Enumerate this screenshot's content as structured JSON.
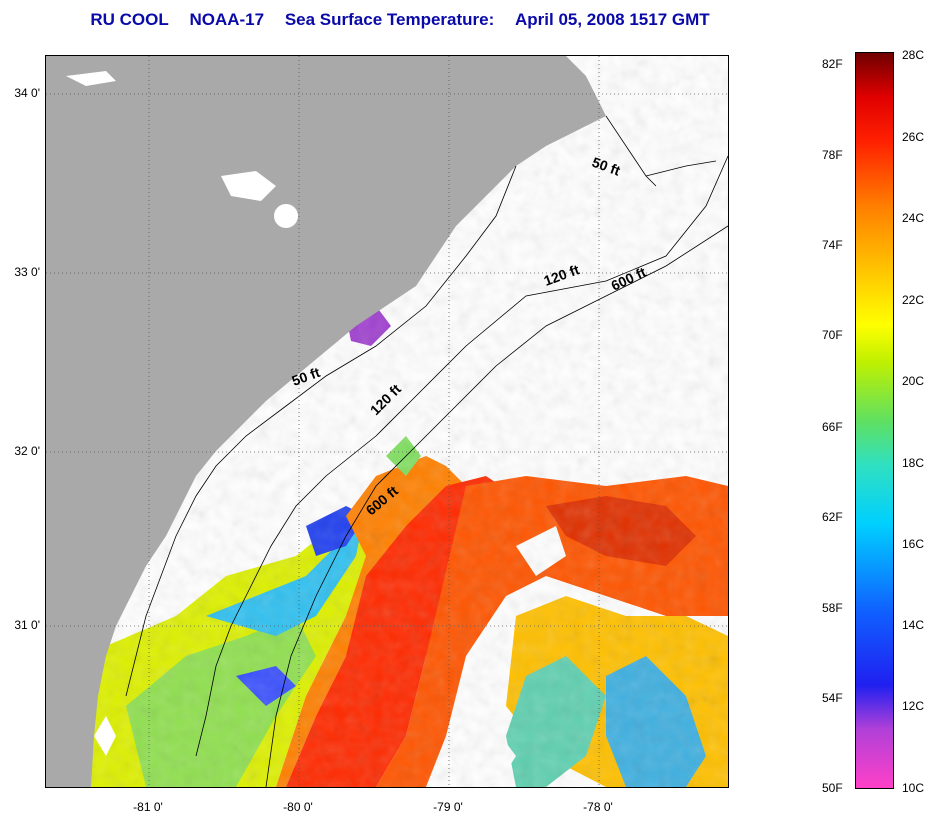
{
  "title": {
    "org": "RU COOL",
    "satellite": "NOAA-17",
    "product": "Sea Surface Temperature:",
    "datetime": "April 05, 2008 1517 GMT"
  },
  "map": {
    "latitude_labels": [
      "34 0'",
      "33 0'",
      "32 0'",
      "31 0'"
    ],
    "longitude_labels": [
      "-81 0'",
      "-80 0'",
      "-79 0'",
      "-78 0'"
    ],
    "bathymetry_labels": [
      "50 ft",
      "120 ft",
      "600 ft",
      "50 ft",
      "120 ft",
      "600 ft"
    ],
    "colors": {
      "land": "#a9a9a9",
      "no_data": "#ffffff",
      "contour": "#000000",
      "grid": "#555555"
    }
  },
  "colorbar": {
    "fahrenheit_labels": [
      "82F",
      "78F",
      "74F",
      "70F",
      "66F",
      "62F",
      "58F",
      "54F",
      "50F"
    ],
    "celsius_labels": [
      "28C",
      "26C",
      "24C",
      "22C",
      "20C",
      "18C",
      "16C",
      "14C",
      "12C",
      "10C"
    ]
  }
}
